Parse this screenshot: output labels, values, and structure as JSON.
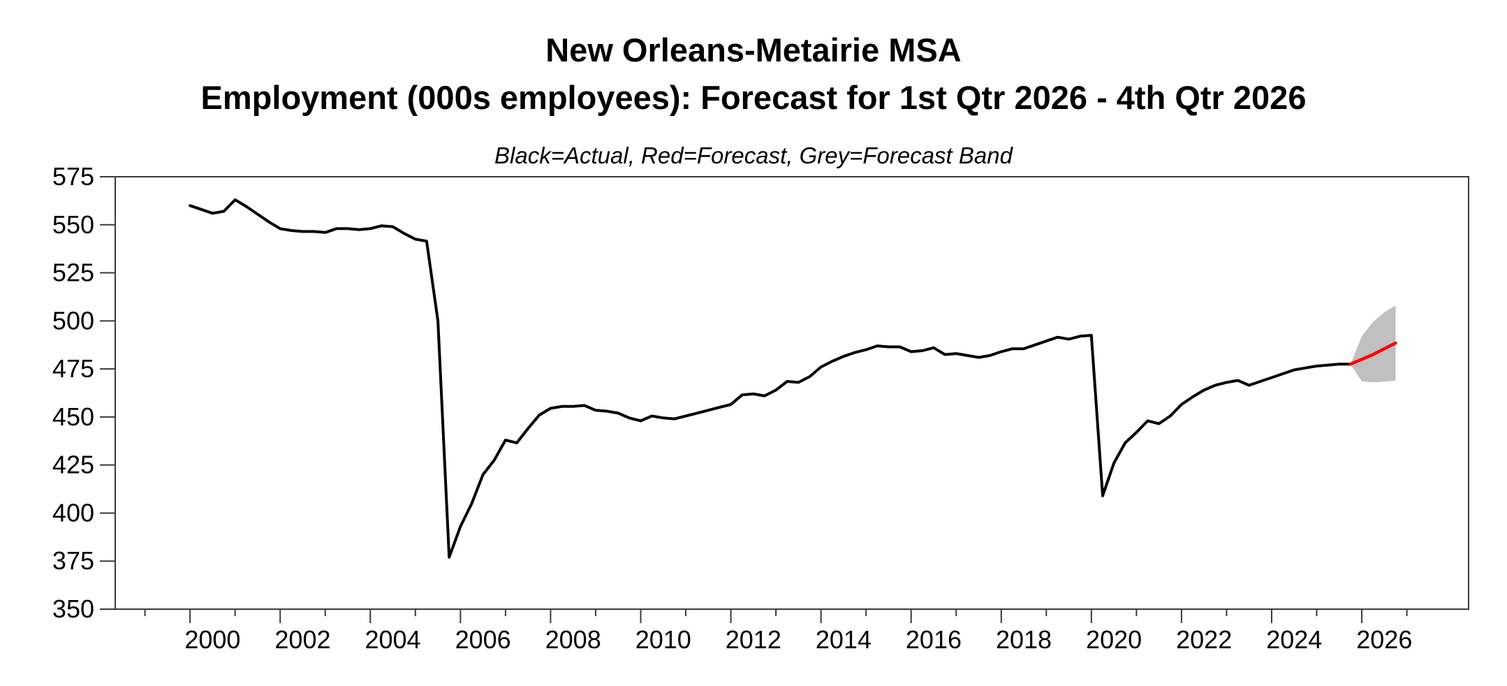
{
  "chart_data": {
    "type": "line",
    "title_line1": "New Orleans-Metairie MSA",
    "title_line2": "Employment (000s employees): Forecast for 1st Qtr 2026 - 4th Qtr 2026",
    "subtitle": "Black=Actual, Red=Forecast, Grey=Forecast Band",
    "legend": [
      {
        "label": "Actual",
        "color": "#000000"
      },
      {
        "label": "Forecast",
        "color": "#ff0000"
      },
      {
        "label": "Forecast Band",
        "color": "#c0c0c0"
      }
    ],
    "grid": false,
    "y_axis": {
      "range": [
        350,
        575
      ],
      "ticks": [
        350,
        375,
        400,
        425,
        450,
        475,
        500,
        525,
        550,
        575
      ]
    },
    "x_axis": {
      "range": [
        1998.34,
        2028.37
      ],
      "tick_label_years": [
        2000,
        2002,
        2004,
        2006,
        2008,
        2010,
        2012,
        2014,
        2016,
        2018,
        2020,
        2022,
        2024,
        2026
      ],
      "minor_tick_years": [
        1999,
        2001,
        2003,
        2005,
        2007,
        2009,
        2011,
        2013,
        2015,
        2017,
        2019,
        2021,
        2023,
        2025,
        2027
      ]
    },
    "colors": {
      "actual": "#000000",
      "forecast": "#ff0000",
      "band": "#c0c0c0",
      "axis": "#3a3a3a"
    },
    "series": {
      "actual": {
        "name": "Actual employment (000s)",
        "frequency": "quarterly",
        "start_year": 2000,
        "start_quarter": 1,
        "values": [
          560,
          558,
          556,
          557,
          563,
          559.5,
          555.5,
          551.5,
          548,
          547,
          546.5,
          546.5,
          546,
          548,
          548,
          547.5,
          548,
          549.5,
          549,
          545.5,
          542.5,
          541.5,
          500,
          377,
          393,
          405,
          420,
          427.5,
          438,
          436.5,
          444,
          451,
          454.5,
          455.5,
          455.5,
          456,
          453.5,
          453,
          452,
          449.5,
          448,
          450.5,
          449.5,
          449,
          450.5,
          452,
          453.5,
          455,
          456.5,
          461.5,
          462,
          461,
          464,
          468.5,
          468,
          471,
          476,
          479,
          481.5,
          483.5,
          485,
          487,
          486.5,
          486.5,
          484,
          484.5,
          486,
          482.5,
          483,
          482,
          481,
          482,
          484,
          485.5,
          485.5,
          487.5,
          489.5,
          491.5,
          490.5,
          492,
          492.5,
          409,
          426,
          436.5,
          442,
          448,
          446.5,
          450.5,
          456.5,
          460.5,
          464,
          466.5,
          468,
          469,
          466.5,
          468.5,
          470.5,
          472.5,
          474.5,
          475.5,
          476.5,
          477,
          477.5,
          477.5
        ]
      },
      "forecast": {
        "name": "Forecast employment (000s)",
        "frequency": "quarterly",
        "start_year": 2025,
        "start_quarter": 4,
        "values": [
          477.5,
          480,
          482.5,
          485.5,
          488.5
        ]
      },
      "band_upper": {
        "name": "Forecast band upper",
        "frequency": "quarterly",
        "start_year": 2025,
        "start_quarter": 4,
        "values": [
          477.5,
          492,
          499.5,
          504.5,
          508
        ]
      },
      "band_lower": {
        "name": "Forecast band lower",
        "frequency": "quarterly",
        "start_year": 2025,
        "start_quarter": 4,
        "values": [
          477.5,
          468.5,
          468,
          468.3,
          469
        ]
      }
    }
  }
}
